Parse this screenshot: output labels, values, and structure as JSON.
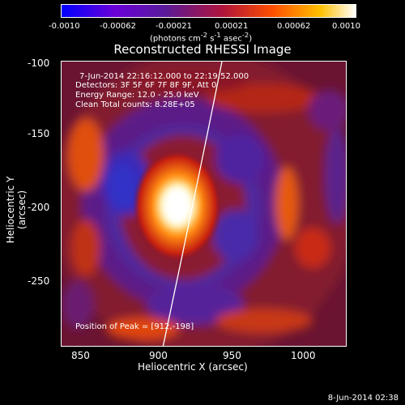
{
  "colorbar": {
    "ticks": [
      "-0.0010",
      "-0.00062",
      "-0.00021",
      "0.00021",
      "0.00062",
      "0.0010"
    ],
    "unit_html": "(photons cm<sup>-2</sup> s<sup>-1</sup> asec<sup>-2</sup>)"
  },
  "plot": {
    "title": "Reconstructed RHESSI Image",
    "xlabel": "Heliocentric X (arcsec)",
    "ylabel": "Heliocentric Y (arcsec)",
    "xticks": [
      "850",
      "900",
      "950",
      "1000"
    ],
    "yticks": [
      "-100",
      "-150",
      "-200",
      "-250"
    ],
    "xlim": [
      831,
      1025
    ],
    "ylim": [
      -291,
      -97
    ]
  },
  "annotations": {
    "time": "7-Jun-2014 22:16:12.000 to 22:19:52.000",
    "detectors": "Detectors: 3F 5F 6F 7F 8F 9F, Att 0",
    "energy": "Energy Range: 12.0 - 25.0 keV",
    "clean": "Clean    Total counts: 8.28E+05",
    "peak": "Position of Peak = [912,-198]"
  },
  "footer": {
    "date": "8-Jun-2014 02:38"
  },
  "colors": {
    "background": "#000000",
    "text": "#ffffff"
  }
}
